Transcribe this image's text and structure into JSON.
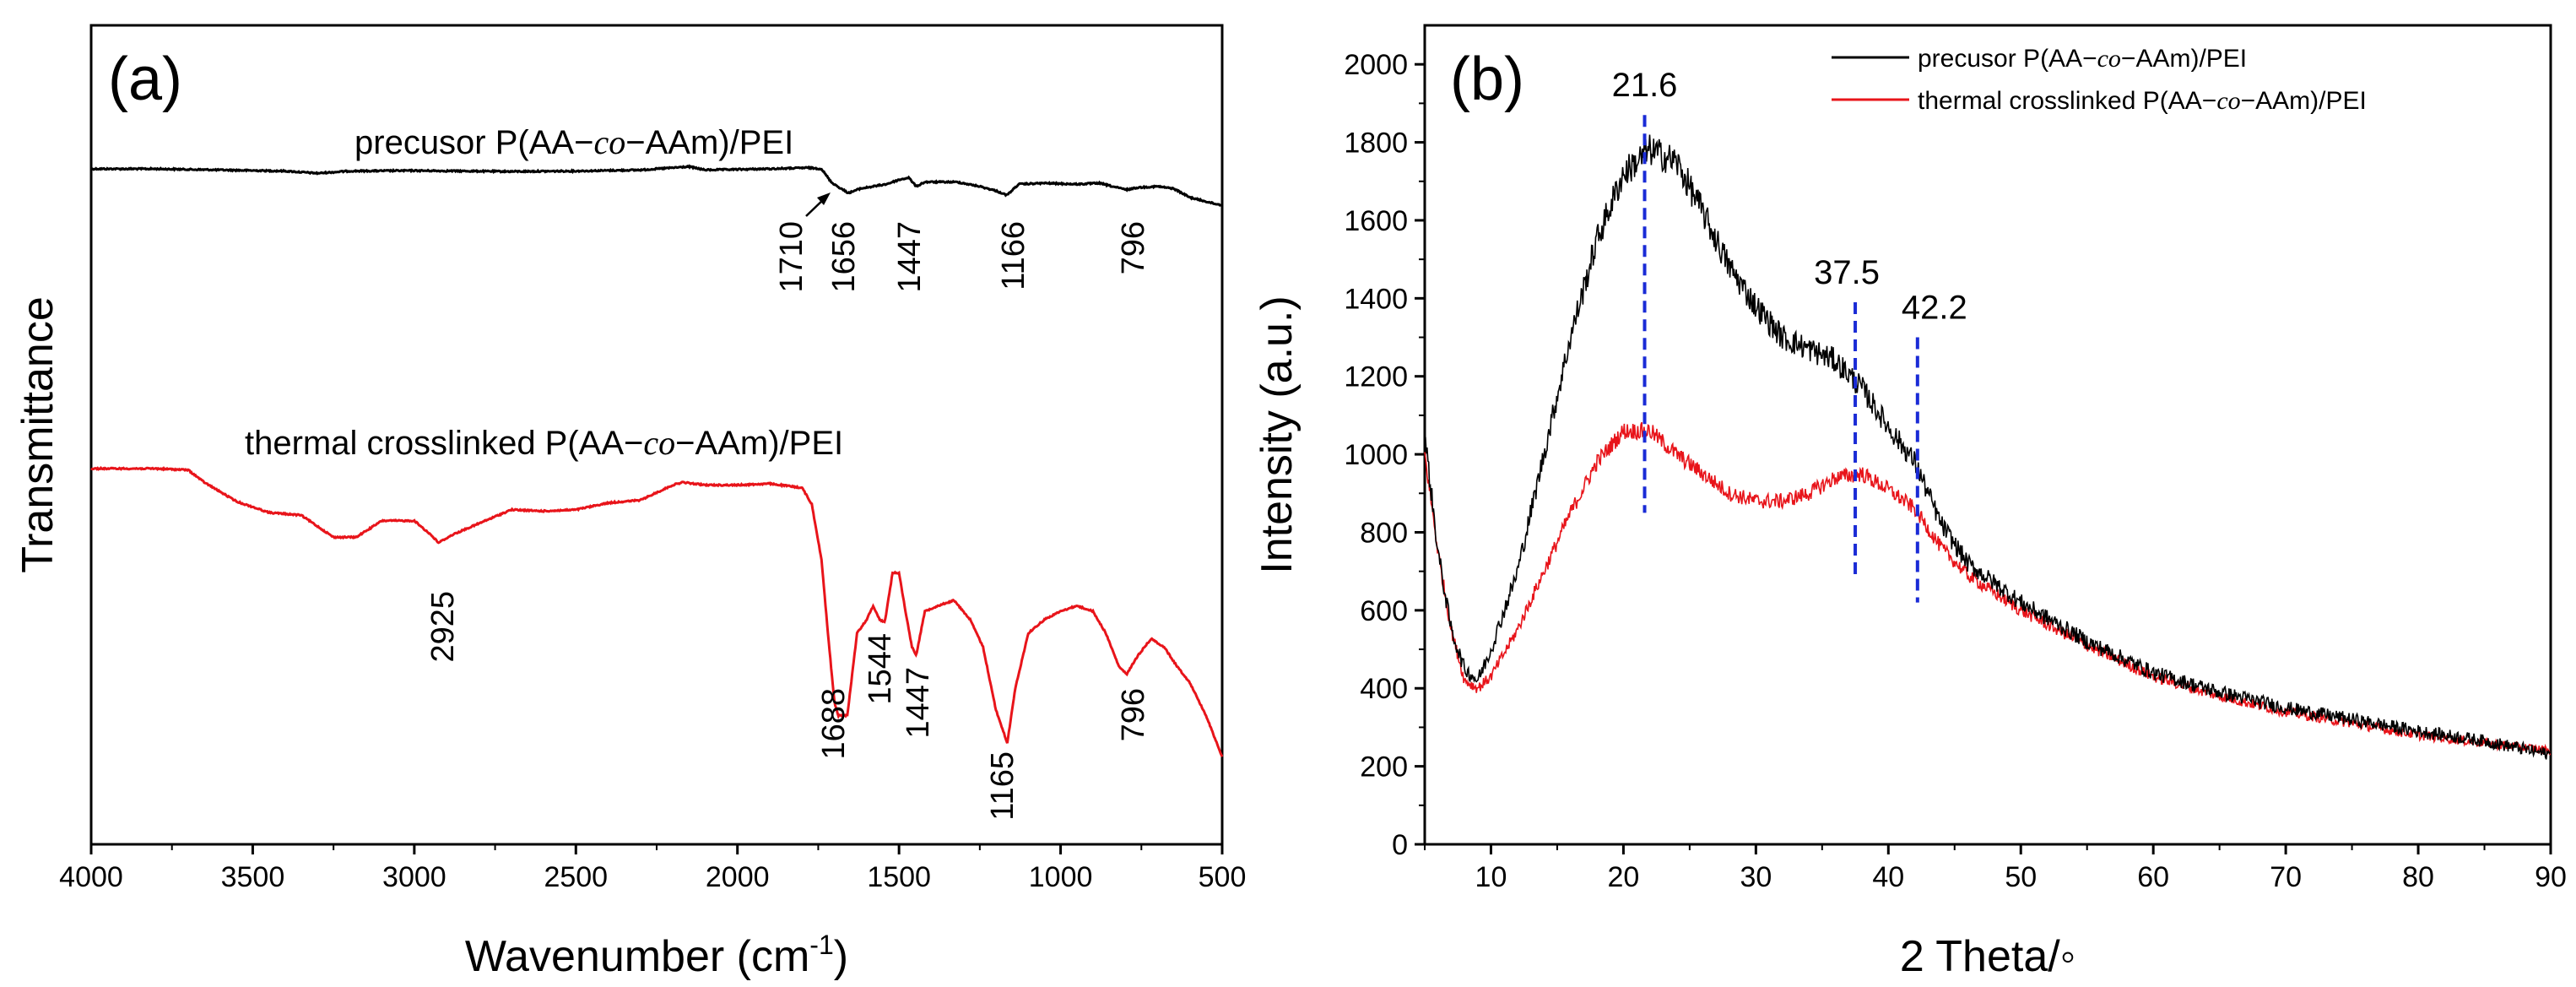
{
  "chart_data": [
    {
      "type": "line",
      "panel_label": "(a)",
      "xlabel": "Wavenumber (cm",
      "xlabel_sup": "-1",
      "xlabel_close": ")",
      "ylabel": "Transmittance",
      "xlim": [
        4000,
        500
      ],
      "xticks": [
        4000,
        3500,
        3000,
        2500,
        2000,
        1500,
        1000,
        500
      ],
      "yticks_shown": false,
      "series": [
        {
          "name": "precusor P(AA-co-AAm)/PEI",
          "label_parts": [
            "precusor P(AA−",
            "co",
            "−AAm)/PEI"
          ],
          "color": "#000000",
          "points": [
            [
              4000,
              0.0
            ],
            [
              3800,
              0.0
            ],
            [
              3600,
              -0.005
            ],
            [
              3400,
              -0.01
            ],
            [
              3300,
              -0.02
            ],
            [
              3200,
              -0.01
            ],
            [
              3000,
              -0.008
            ],
            [
              2700,
              -0.012
            ],
            [
              2500,
              -0.01
            ],
            [
              2300,
              -0.005
            ],
            [
              2150,
              0.01
            ],
            [
              2100,
              -0.005
            ],
            [
              1900,
              0.0
            ],
            [
              1780,
              0.005
            ],
            [
              1740,
              0.0
            ],
            [
              1710,
              -0.06
            ],
            [
              1680,
              -0.09
            ],
            [
              1656,
              -0.11
            ],
            [
              1620,
              -0.09
            ],
            [
              1580,
              -0.08
            ],
            [
              1540,
              -0.07
            ],
            [
              1500,
              -0.05
            ],
            [
              1470,
              -0.04
            ],
            [
              1447,
              -0.08
            ],
            [
              1420,
              -0.06
            ],
            [
              1380,
              -0.06
            ],
            [
              1320,
              -0.06
            ],
            [
              1250,
              -0.08
            ],
            [
              1200,
              -0.1
            ],
            [
              1166,
              -0.12
            ],
            [
              1130,
              -0.07
            ],
            [
              1050,
              -0.065
            ],
            [
              950,
              -0.07
            ],
            [
              880,
              -0.065
            ],
            [
              840,
              -0.08
            ],
            [
              796,
              -0.095
            ],
            [
              760,
              -0.085
            ],
            [
              700,
              -0.08
            ],
            [
              650,
              -0.09
            ],
            [
              600,
              -0.13
            ],
            [
              520,
              -0.16
            ],
            [
              500,
              -0.165
            ]
          ],
          "annotations": [
            "1710",
            "1656",
            "1447",
            "1166",
            "796"
          ]
        },
        {
          "name": "thermal crosslinked P(AA-co-AAm)/PEI",
          "label_parts": [
            "thermal crosslinked P(AA−",
            "co",
            "−AAm)/PEI"
          ],
          "color": "#e8141a",
          "points": [
            [
              4000,
              0.0
            ],
            [
              3800,
              0.0
            ],
            [
              3700,
              -0.005
            ],
            [
              3650,
              -0.05
            ],
            [
              3550,
              -0.12
            ],
            [
              3450,
              -0.16
            ],
            [
              3350,
              -0.17
            ],
            [
              3250,
              -0.25
            ],
            [
              3180,
              -0.25
            ],
            [
              3100,
              -0.19
            ],
            [
              3000,
              -0.19
            ],
            [
              2950,
              -0.24
            ],
            [
              2925,
              -0.27
            ],
            [
              2880,
              -0.24
            ],
            [
              2800,
              -0.2
            ],
            [
              2700,
              -0.15
            ],
            [
              2600,
              -0.155
            ],
            [
              2500,
              -0.15
            ],
            [
              2400,
              -0.125
            ],
            [
              2300,
              -0.115
            ],
            [
              2200,
              -0.06
            ],
            [
              2170,
              -0.05
            ],
            [
              2100,
              -0.06
            ],
            [
              2000,
              -0.06
            ],
            [
              1900,
              -0.055
            ],
            [
              1800,
              -0.07
            ],
            [
              1770,
              -0.13
            ],
            [
              1740,
              -0.33
            ],
            [
              1720,
              -0.6
            ],
            [
              1700,
              -0.85
            ],
            [
              1688,
              -0.9
            ],
            [
              1660,
              -0.9
            ],
            [
              1630,
              -0.6
            ],
            [
              1600,
              -0.55
            ],
            [
              1580,
              -0.5
            ],
            [
              1560,
              -0.55
            ],
            [
              1544,
              -0.56
            ],
            [
              1520,
              -0.38
            ],
            [
              1500,
              -0.38
            ],
            [
              1480,
              -0.52
            ],
            [
              1460,
              -0.65
            ],
            [
              1447,
              -0.68
            ],
            [
              1420,
              -0.52
            ],
            [
              1380,
              -0.5
            ],
            [
              1330,
              -0.48
            ],
            [
              1280,
              -0.55
            ],
            [
              1240,
              -0.65
            ],
            [
              1200,
              -0.88
            ],
            [
              1165,
              -1.0
            ],
            [
              1140,
              -0.8
            ],
            [
              1100,
              -0.6
            ],
            [
              1050,
              -0.55
            ],
            [
              1000,
              -0.52
            ],
            [
              950,
              -0.5
            ],
            [
              900,
              -0.52
            ],
            [
              860,
              -0.6
            ],
            [
              820,
              -0.72
            ],
            [
              796,
              -0.75
            ],
            [
              760,
              -0.68
            ],
            [
              720,
              -0.62
            ],
            [
              680,
              -0.65
            ],
            [
              640,
              -0.72
            ],
            [
              600,
              -0.78
            ],
            [
              550,
              -0.9
            ],
            [
              500,
              -1.05
            ]
          ],
          "annotations": [
            "2925",
            "1688",
            "1544",
            "1447",
            "1165",
            "796"
          ]
        }
      ]
    },
    {
      "type": "line",
      "panel_label": "(b)",
      "xlabel": "2 Theta/◦",
      "ylabel": "Intensity (a.u.)",
      "xlim": [
        5,
        90
      ],
      "ylim": [
        0,
        2100
      ],
      "xticks": [
        10,
        20,
        30,
        40,
        50,
        60,
        70,
        80,
        90
      ],
      "yticks": [
        0,
        200,
        400,
        600,
        800,
        1000,
        1200,
        1400,
        1600,
        1800,
        2000
      ],
      "peak_markers": [
        {
          "x": 21.6,
          "label": "21.6"
        },
        {
          "x": 37.5,
          "label": "37.5"
        },
        {
          "x": 42.2,
          "label": "42.2"
        }
      ],
      "series": [
        {
          "name": "precusor P(AA-co-AAm)/PEI",
          "label_parts": [
            "precusor P(AA−",
            "co",
            "−AAm)/PEI"
          ],
          "color": "#000000",
          "points": [
            [
              5,
              1050
            ],
            [
              6,
              750
            ],
            [
              7,
              550
            ],
            [
              8,
              450
            ],
            [
              9,
              420
            ],
            [
              10,
              500
            ],
            [
              12,
              700
            ],
            [
              14,
              1000
            ],
            [
              16,
              1300
            ],
            [
              18,
              1550
            ],
            [
              20,
              1720
            ],
            [
              22,
              1780
            ],
            [
              24,
              1750
            ],
            [
              26,
              1620
            ],
            [
              28,
              1480
            ],
            [
              30,
              1380
            ],
            [
              32,
              1300
            ],
            [
              34,
              1270
            ],
            [
              36,
              1240
            ],
            [
              38,
              1170
            ],
            [
              40,
              1070
            ],
            [
              42,
              980
            ],
            [
              44,
              820
            ],
            [
              46,
              720
            ],
            [
              50,
              620
            ],
            [
              55,
              520
            ],
            [
              60,
              440
            ],
            [
              65,
              390
            ],
            [
              70,
              350
            ],
            [
              75,
              320
            ],
            [
              80,
              290
            ],
            [
              85,
              265
            ],
            [
              90,
              230
            ]
          ]
        },
        {
          "name": "thermal crosslinked P(AA-co-AAm)/PEI",
          "label_parts": [
            "thermal crosslinked P(AA−",
            "co",
            "−AAm)/PEI"
          ],
          "color": "#e8141a",
          "points": [
            [
              5,
              1000
            ],
            [
              6,
              750
            ],
            [
              7,
              550
            ],
            [
              8,
              420
            ],
            [
              9,
              400
            ],
            [
              10,
              430
            ],
            [
              12,
              550
            ],
            [
              14,
              700
            ],
            [
              16,
              850
            ],
            [
              18,
              980
            ],
            [
              20,
              1060
            ],
            [
              22,
              1060
            ],
            [
              24,
              1000
            ],
            [
              26,
              950
            ],
            [
              28,
              900
            ],
            [
              30,
              880
            ],
            [
              32,
              880
            ],
            [
              34,
              900
            ],
            [
              36,
              940
            ],
            [
              38,
              950
            ],
            [
              40,
              910
            ],
            [
              42,
              860
            ],
            [
              44,
              760
            ],
            [
              46,
              690
            ],
            [
              50,
              600
            ],
            [
              55,
              510
            ],
            [
              60,
              430
            ],
            [
              65,
              380
            ],
            [
              70,
              340
            ],
            [
              75,
              310
            ],
            [
              80,
              280
            ],
            [
              85,
              260
            ],
            [
              90,
              240
            ]
          ]
        }
      ]
    }
  ]
}
